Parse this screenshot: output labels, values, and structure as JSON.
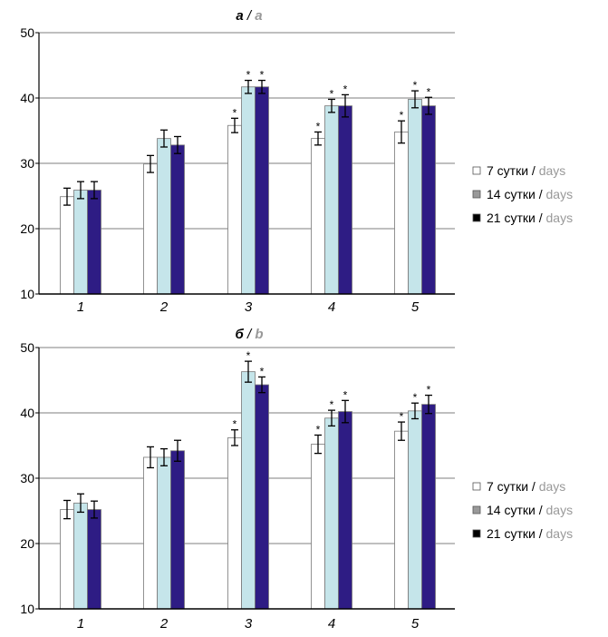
{
  "chart_data": [
    {
      "type": "bar",
      "title_main": "а",
      "title_sep": " / ",
      "title_alt": "a",
      "categories": [
        "1",
        "2",
        "3",
        "4",
        "5"
      ],
      "ylim": [
        10,
        50
      ],
      "yticks": [
        10,
        20,
        30,
        40,
        50
      ],
      "grid": true,
      "legend_position": "right",
      "series": [
        {
          "name": "7 сутки",
          "name_alt": "days",
          "color": "#ffffff",
          "values": [
            24.9,
            29.9,
            35.8,
            33.8,
            34.8
          ],
          "errors": [
            1.3,
            1.3,
            1.1,
            1.0,
            1.7
          ],
          "significant": [
            false,
            false,
            true,
            true,
            true
          ]
        },
        {
          "name": "14 сутки",
          "name_alt": "days",
          "color": "#c5e5ea",
          "values": [
            25.9,
            33.8,
            41.7,
            38.8,
            39.8
          ],
          "errors": [
            1.3,
            1.3,
            1.0,
            1.0,
            1.3
          ],
          "significant": [
            false,
            false,
            true,
            true,
            true
          ]
        },
        {
          "name": "21 сутки",
          "name_alt": "days",
          "color": "#2e1c84",
          "values": [
            25.9,
            32.8,
            41.7,
            38.8,
            38.8
          ],
          "errors": [
            1.3,
            1.3,
            1.0,
            1.7,
            1.3
          ],
          "significant": [
            false,
            false,
            true,
            true,
            true
          ]
        }
      ]
    },
    {
      "type": "bar",
      "title_main": "б",
      "title_sep": " / ",
      "title_alt": "b",
      "categories": [
        "1",
        "2",
        "3",
        "4",
        "5"
      ],
      "ylim": [
        10,
        50
      ],
      "yticks": [
        10,
        20,
        30,
        40,
        50
      ],
      "grid": true,
      "legend_position": "right",
      "series": [
        {
          "name": "7 сутки",
          "name_alt": "days",
          "color": "#ffffff",
          "values": [
            25.2,
            33.2,
            36.2,
            35.2,
            37.2
          ],
          "errors": [
            1.4,
            1.6,
            1.2,
            1.4,
            1.4
          ],
          "significant": [
            false,
            false,
            true,
            true,
            true
          ]
        },
        {
          "name": "14 сутки",
          "name_alt": "days",
          "color": "#c5e5ea",
          "values": [
            26.2,
            33.2,
            46.3,
            39.2,
            40.3
          ],
          "errors": [
            1.4,
            1.3,
            1.6,
            1.2,
            1.2
          ],
          "significant": [
            false,
            false,
            true,
            true,
            true
          ]
        },
        {
          "name": "21 сутки",
          "name_alt": "days",
          "color": "#2e1c84",
          "values": [
            25.2,
            34.2,
            44.3,
            40.2,
            41.3
          ],
          "errors": [
            1.3,
            1.6,
            1.2,
            1.7,
            1.4
          ],
          "significant": [
            false,
            false,
            true,
            true,
            true
          ]
        }
      ]
    }
  ],
  "legend_swatches": [
    "#ffffff",
    "#999999",
    "#000000"
  ],
  "significance_mark": "*"
}
